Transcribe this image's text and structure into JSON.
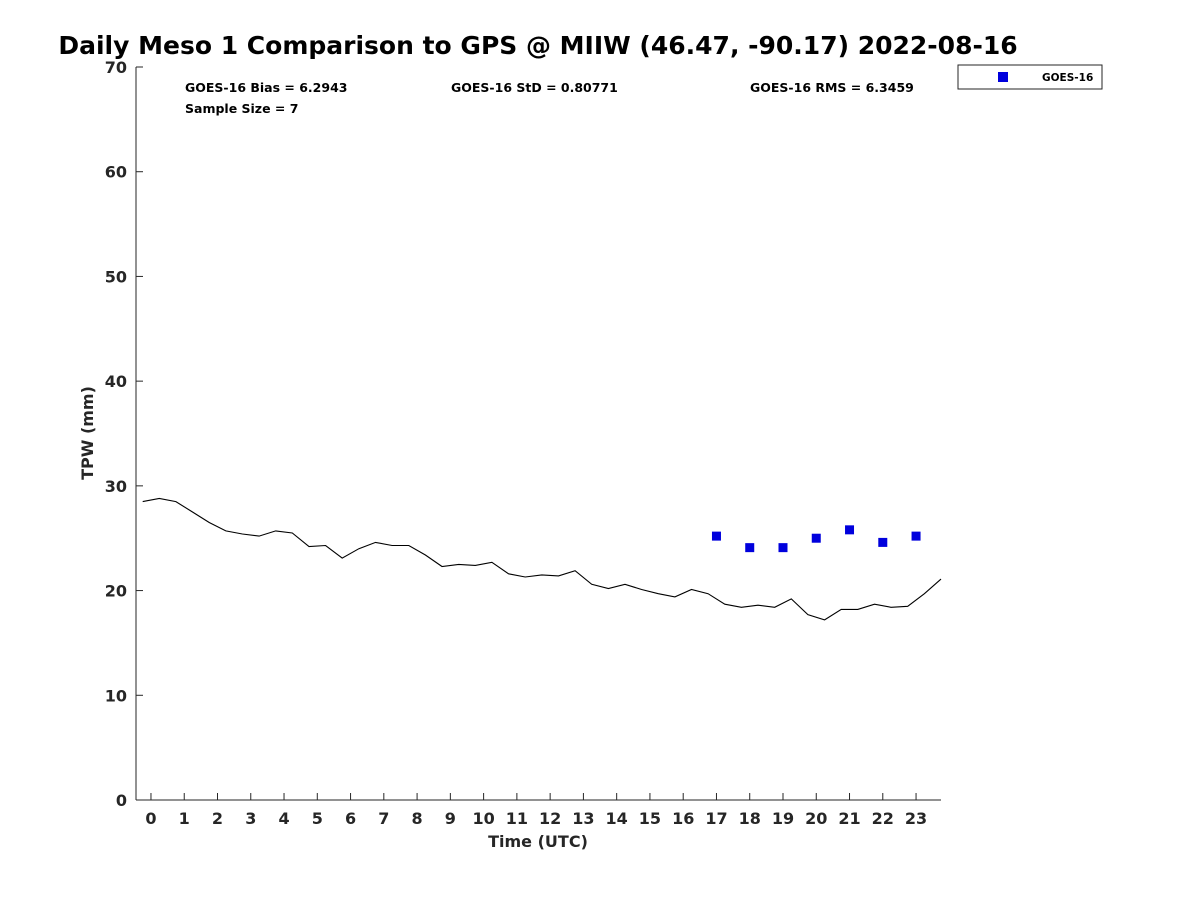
{
  "chart_data": {
    "type": "scatter",
    "title": "Daily Meso 1 Comparison to GPS @ MIIW (46.47, -90.17) 2022-08-16",
    "xlabel": "Time (UTC)",
    "ylabel": "TPW (mm)",
    "xlim": [
      -0.45,
      23.75
    ],
    "ylim": [
      0,
      70
    ],
    "x_ticks": [
      0,
      1,
      2,
      3,
      4,
      5,
      6,
      7,
      8,
      9,
      10,
      11,
      12,
      13,
      14,
      15,
      16,
      17,
      18,
      19,
      20,
      21,
      22,
      23
    ],
    "y_ticks": [
      0,
      10,
      20,
      30,
      40,
      50,
      60,
      70
    ],
    "grid": false,
    "legend_position": "top-right outside",
    "stats": {
      "bias": "GOES-16 Bias = 6.2943",
      "std": "GOES-16 StD = 0.80771",
      "rms": "GOES-16 RMS = 6.3459",
      "sample": "Sample Size = 7"
    },
    "series": [
      {
        "name": "GOES-16",
        "kind": "scatter",
        "marker": "square",
        "color": "#0000dd",
        "x": [
          17,
          18,
          19,
          20,
          21,
          22,
          23
        ],
        "y": [
          25.2,
          24.1,
          24.1,
          25.0,
          25.8,
          24.6,
          25.2
        ]
      },
      {
        "kind": "line",
        "color": "#000000",
        "x": [
          -0.25,
          0.25,
          0.75,
          1.25,
          1.75,
          2.25,
          2.75,
          3.25,
          3.75,
          4.25,
          4.75,
          5.25,
          5.75,
          6.25,
          6.75,
          7.25,
          7.75,
          8.25,
          8.75,
          9.25,
          9.75,
          10.25,
          10.75,
          11.25,
          11.75,
          12.25,
          12.75,
          13.25,
          13.75,
          14.25,
          14.75,
          15.25,
          15.75,
          16.25,
          16.75,
          17.25,
          17.75,
          18.25,
          18.75,
          19.25,
          19.75,
          20.25,
          20.75,
          21.25,
          21.75,
          22.25,
          22.75,
          23.25,
          23.75
        ],
        "y": [
          28.5,
          28.8,
          28.5,
          27.5,
          26.5,
          25.7,
          25.4,
          25.2,
          25.7,
          25.5,
          24.2,
          24.3,
          23.1,
          24.0,
          24.6,
          24.3,
          24.3,
          23.4,
          22.3,
          22.5,
          22.4,
          22.7,
          21.6,
          21.3,
          21.5,
          21.4,
          21.9,
          20.6,
          20.2,
          20.6,
          20.1,
          19.7,
          19.4,
          20.1,
          19.7,
          18.7,
          18.4,
          18.6,
          18.4,
          19.2,
          17.7,
          17.2,
          18.2,
          18.2,
          18.7,
          18.4,
          18.5,
          19.7,
          21.1
        ]
      }
    ]
  }
}
